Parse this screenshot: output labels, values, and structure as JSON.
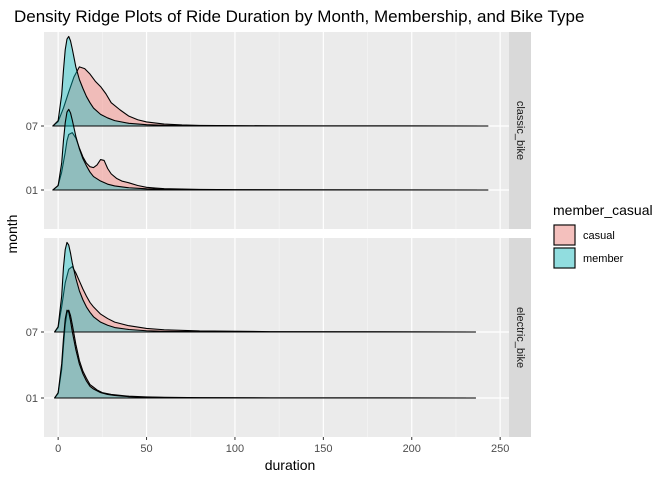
{
  "chart_data": {
    "type": "density_ridges",
    "title": "Density Ridge Plots of Ride Duration by Month, Membership, and Bike Type",
    "xlabel": "duration",
    "ylabel": "month",
    "x_ticks": [
      0,
      50,
      100,
      150,
      200,
      250
    ],
    "xlim": [
      -8,
      255
    ],
    "y_categories": [
      "01",
      "07"
    ],
    "ridge_scale_units": 1.4,
    "grid": true,
    "legend": {
      "title": "member_casual",
      "position": "right",
      "entries": [
        {
          "name": "casual",
          "color": "#F8766D"
        },
        {
          "name": "member",
          "color": "#00BFC4"
        }
      ]
    },
    "fill_opacity": 0.4,
    "panel_background": "#EBEBEB",
    "strip_background": "#D9D9D9",
    "facets": [
      {
        "label": "classic_bike",
        "ridges": [
          {
            "month": "07",
            "series": [
              {
                "name": "casual",
                "x": [
                  -3,
                  0,
                  3,
                  6,
                  9,
                  12,
                  15,
                  18,
                  21,
                  24,
                  27,
                  30,
                  35,
                  40,
                  45,
                  50,
                  60,
                  70,
                  80,
                  100,
                  120,
                  150,
                  180,
                  200,
                  243
                ],
                "y": [
                  0,
                  0.05,
                  0.2,
                  0.38,
                  0.55,
                  0.66,
                  0.64,
                  0.58,
                  0.5,
                  0.44,
                  0.36,
                  0.26,
                  0.18,
                  0.11,
                  0.07,
                  0.045,
                  0.022,
                  0.012,
                  0.007,
                  0.004,
                  0.002,
                  0.001,
                  0.001,
                  0.001,
                  0
                ]
              },
              {
                "name": "member",
                "x": [
                  -3,
                  0,
                  2,
                  3,
                  4,
                  5,
                  6,
                  7,
                  8,
                  9,
                  10,
                  12,
                  14,
                  16,
                  18,
                  20,
                  24,
                  28,
                  32,
                  40,
                  50,
                  60,
                  80,
                  120,
                  243
                ],
                "y": [
                  0,
                  0.06,
                  0.35,
                  0.62,
                  0.85,
                  0.97,
                  1.0,
                  0.95,
                  0.86,
                  0.76,
                  0.66,
                  0.52,
                  0.42,
                  0.33,
                  0.26,
                  0.2,
                  0.13,
                  0.09,
                  0.06,
                  0.03,
                  0.015,
                  0.008,
                  0.003,
                  0.001,
                  0
                ]
              }
            ]
          },
          {
            "month": "01",
            "series": [
              {
                "name": "casual",
                "x": [
                  -3,
                  0,
                  2,
                  4,
                  5,
                  6,
                  8,
                  10,
                  12,
                  14,
                  16,
                  18,
                  20,
                  22,
                  24,
                  26,
                  28,
                  30,
                  33,
                  36,
                  40,
                  45,
                  50,
                  55,
                  60,
                  70,
                  80,
                  100,
                  140,
                  243
                ],
                "y": [
                  0,
                  0.05,
                  0.2,
                  0.42,
                  0.55,
                  0.62,
                  0.64,
                  0.58,
                  0.47,
                  0.37,
                  0.3,
                  0.26,
                  0.25,
                  0.28,
                  0.34,
                  0.33,
                  0.24,
                  0.18,
                  0.13,
                  0.1,
                  0.08,
                  0.05,
                  0.03,
                  0.022,
                  0.015,
                  0.01,
                  0.006,
                  0.004,
                  0.002,
                  0
                ]
              },
              {
                "name": "member",
                "x": [
                  -3,
                  0,
                  2,
                  3,
                  4,
                  5,
                  6,
                  7,
                  8,
                  9,
                  10,
                  12,
                  14,
                  16,
                  18,
                  20,
                  24,
                  28,
                  32,
                  40,
                  50,
                  60,
                  80,
                  120,
                  243
                ],
                "y": [
                  0,
                  0.05,
                  0.3,
                  0.55,
                  0.75,
                  0.87,
                  0.9,
                  0.86,
                  0.78,
                  0.69,
                  0.6,
                  0.46,
                  0.35,
                  0.27,
                  0.2,
                  0.15,
                  0.1,
                  0.065,
                  0.045,
                  0.025,
                  0.013,
                  0.007,
                  0.003,
                  0.001,
                  0
                ]
              }
            ]
          }
        ]
      },
      {
        "label": "electric_bike",
        "ridges": [
          {
            "month": "07",
            "series": [
              {
                "name": "casual",
                "x": [
                  -2,
                  0,
                  2,
                  4,
                  6,
                  8,
                  10,
                  12,
                  14,
                  16,
                  18,
                  20,
                  24,
                  28,
                  32,
                  40,
                  50,
                  60,
                  80,
                  120,
                  236
                ],
                "y": [
                  0,
                  0.05,
                  0.28,
                  0.55,
                  0.7,
                  0.73,
                  0.66,
                  0.57,
                  0.48,
                  0.4,
                  0.33,
                  0.28,
                  0.2,
                  0.15,
                  0.11,
                  0.07,
                  0.04,
                  0.025,
                  0.012,
                  0.004,
                  0
                ]
              },
              {
                "name": "member",
                "x": [
                  -2,
                  0,
                  2,
                  3,
                  4,
                  5,
                  6,
                  7,
                  8,
                  10,
                  12,
                  14,
                  16,
                  18,
                  20,
                  24,
                  28,
                  32,
                  40,
                  50,
                  60,
                  80,
                  120,
                  236
                ],
                "y": [
                  0,
                  0.06,
                  0.4,
                  0.72,
                  0.92,
                  1.0,
                  0.97,
                  0.88,
                  0.77,
                  0.6,
                  0.46,
                  0.36,
                  0.28,
                  0.22,
                  0.17,
                  0.11,
                  0.075,
                  0.05,
                  0.028,
                  0.014,
                  0.008,
                  0.003,
                  0.001,
                  0
                ]
              }
            ]
          },
          {
            "month": "01",
            "series": [
              {
                "name": "casual",
                "x": [
                  -2,
                  0,
                  2,
                  3,
                  4,
                  5,
                  6,
                  7,
                  8,
                  10,
                  12,
                  14,
                  16,
                  18,
                  20,
                  22,
                  25,
                  30,
                  40,
                  50,
                  60,
                  80,
                  120,
                  236
                ],
                "y": [
                  0,
                  0.05,
                  0.32,
                  0.58,
                  0.82,
                  0.95,
                  0.98,
                  0.92,
                  0.82,
                  0.6,
                  0.42,
                  0.3,
                  0.22,
                  0.15,
                  0.12,
                  0.09,
                  0.06,
                  0.04,
                  0.02,
                  0.012,
                  0.008,
                  0.004,
                  0.001,
                  0
                ]
              },
              {
                "name": "member",
                "x": [
                  -2,
                  0,
                  2,
                  3,
                  4,
                  5,
                  6,
                  7,
                  8,
                  10,
                  12,
                  14,
                  16,
                  18,
                  20,
                  24,
                  28,
                  32,
                  40,
                  50,
                  60,
                  80,
                  120,
                  236
                ],
                "y": [
                  0,
                  0.06,
                  0.38,
                  0.66,
                  0.88,
                  0.98,
                  0.96,
                  0.86,
                  0.74,
                  0.54,
                  0.38,
                  0.27,
                  0.19,
                  0.13,
                  0.1,
                  0.06,
                  0.04,
                  0.028,
                  0.015,
                  0.008,
                  0.005,
                  0.002,
                  0.001,
                  0
                ]
              }
            ]
          }
        ]
      }
    ]
  }
}
